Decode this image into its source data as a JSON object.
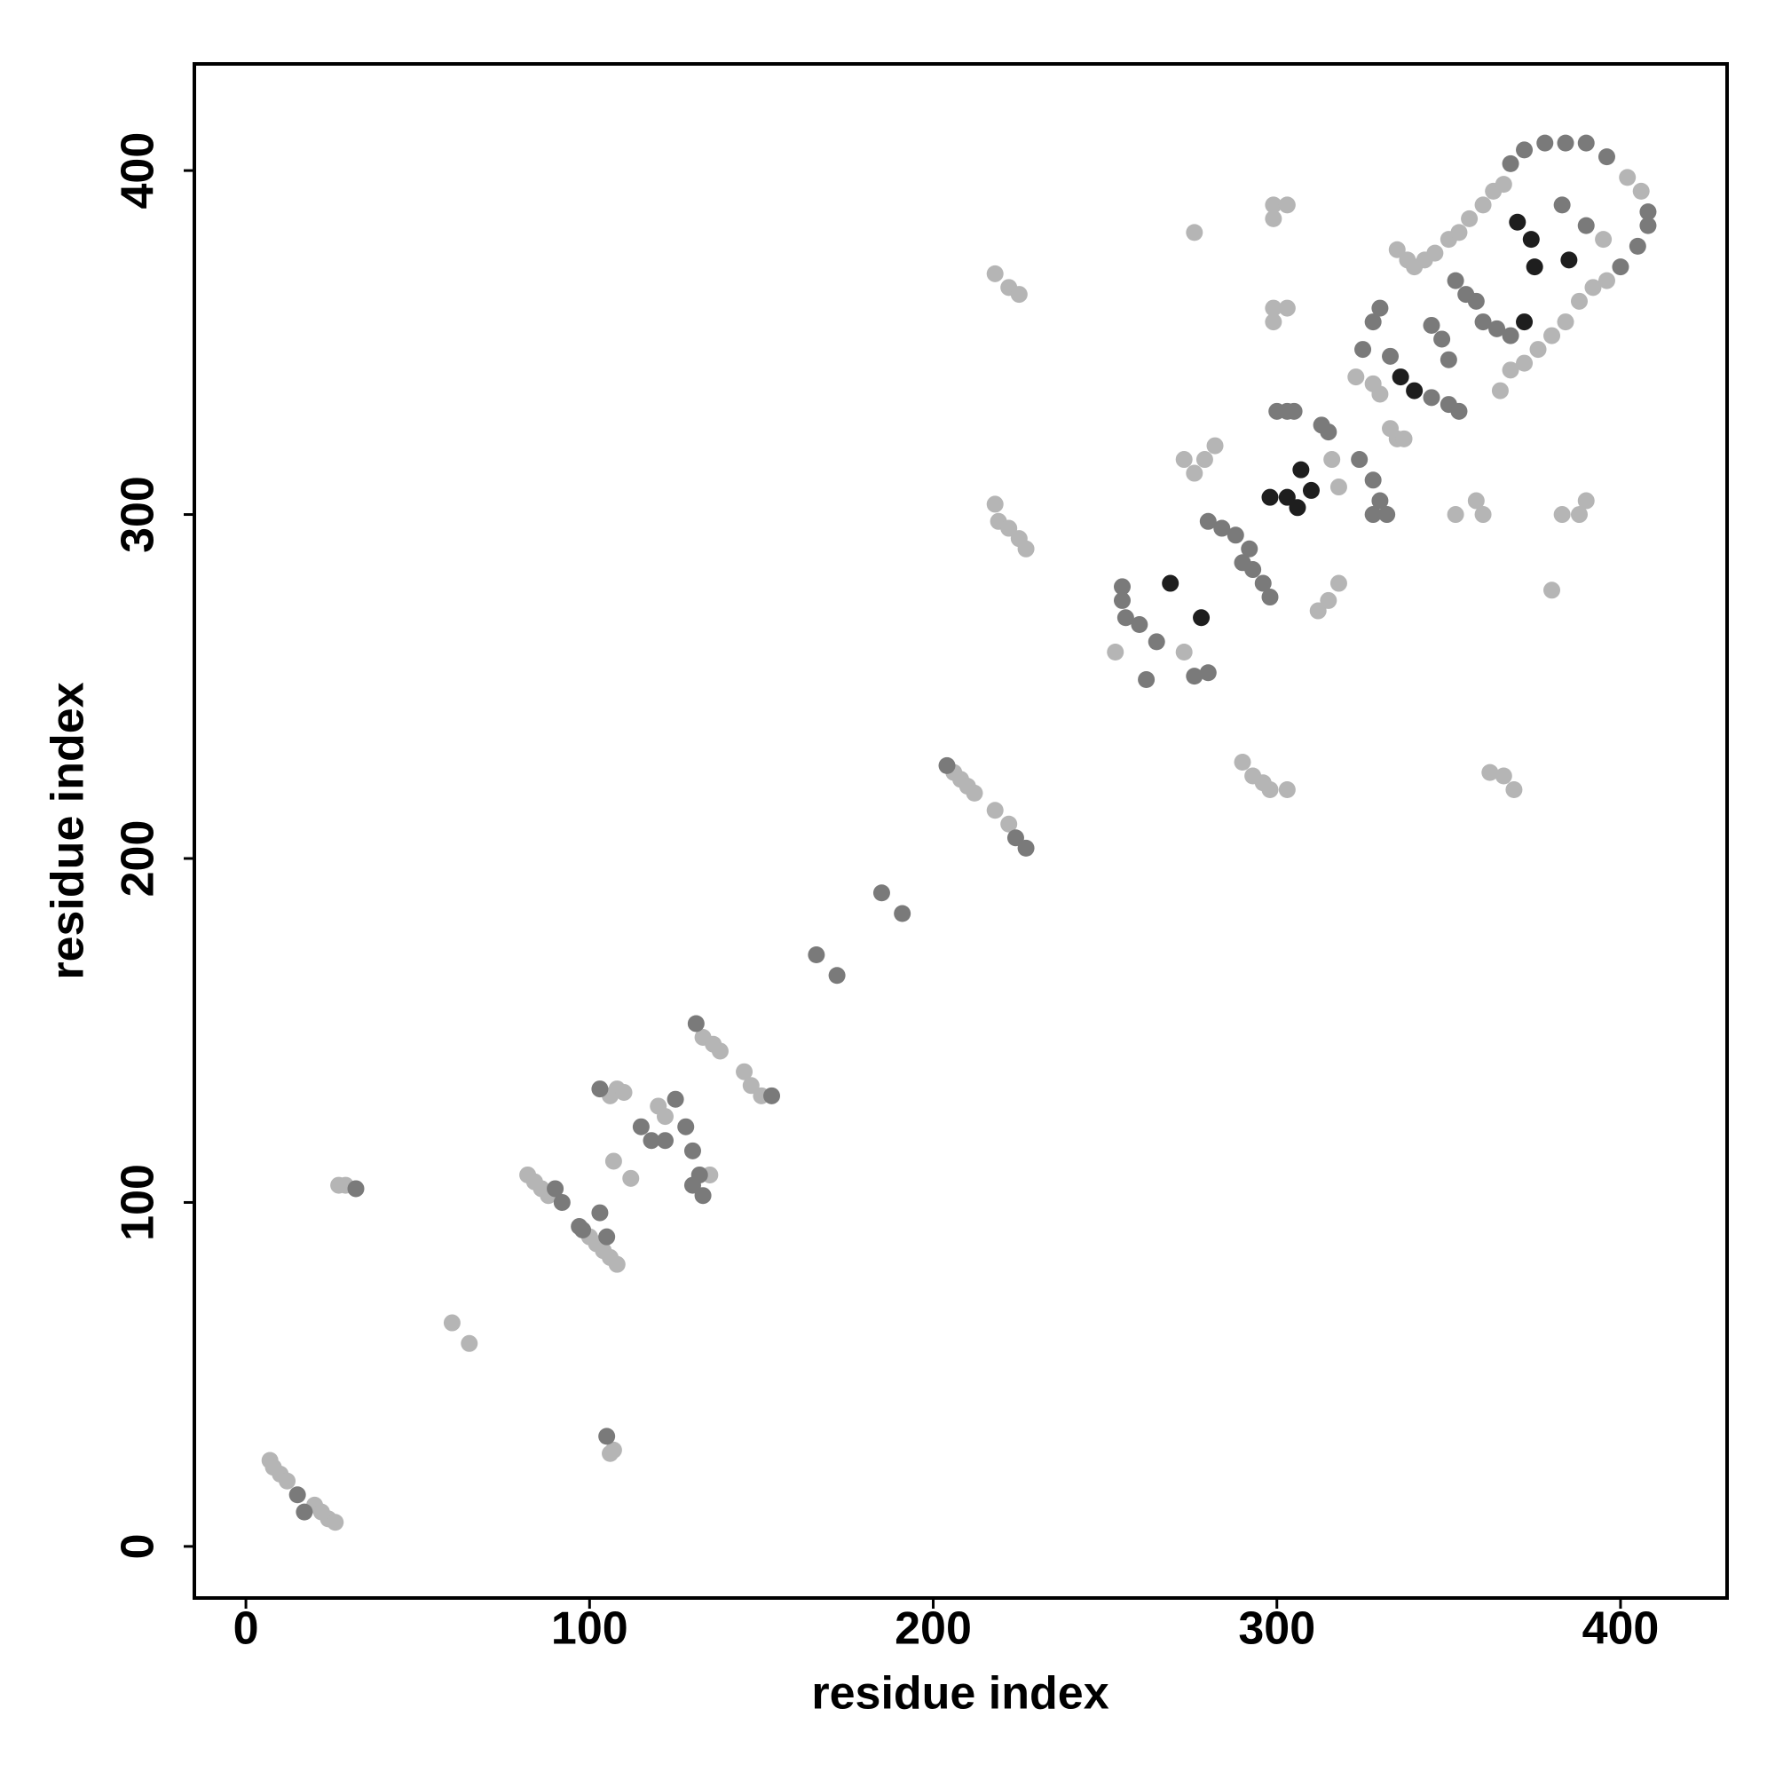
{
  "chart_data": {
    "type": "scatter",
    "x_label": "residue index",
    "y_label": "residue index",
    "xlim": [
      -15,
      431
    ],
    "ylim": [
      -15,
      431
    ],
    "xticks": [
      0,
      100,
      200,
      300,
      400
    ],
    "yticks": [
      0,
      100,
      200,
      300,
      400
    ],
    "series": [
      {
        "color": "#b5b5b5",
        "x": [
          7,
          8,
          10,
          12,
          20,
          22,
          24,
          26,
          27,
          29,
          60,
          65,
          106,
          107,
          82,
          84,
          86,
          88,
          100,
          102,
          104,
          106,
          108,
          107,
          112,
          106,
          108,
          110,
          120,
          122,
          135,
          133,
          136,
          138,
          145,
          147,
          150,
          206,
          208,
          210,
          212,
          218,
          222,
          218,
          222,
          225,
          218,
          219,
          222,
          225,
          227,
          253,
          273,
          276,
          273,
          276,
          279,
          282,
          290,
          293,
          296,
          298,
          303,
          299,
          303,
          299,
          299,
          303,
          299,
          316,
          318,
          312,
          315,
          318,
          323,
          328,
          330,
          333,
          335,
          337,
          335,
          338,
          340,
          343,
          346,
          350,
          353,
          356,
          360,
          363,
          366,
          358,
          360,
          352,
          365,
          368,
          372,
          376,
          380,
          384,
          388,
          392,
          396,
          380,
          383,
          388,
          390,
          362,
          366,
          369,
          395,
          402,
          406
        ],
        "y": [
          25,
          23,
          21,
          19,
          12,
          10,
          8,
          7,
          105,
          105,
          65,
          59,
          27,
          28,
          108,
          106,
          104,
          102,
          90,
          88,
          86,
          84,
          82,
          112,
          107,
          131,
          133,
          132,
          128,
          125,
          108,
          148,
          146,
          144,
          138,
          134,
          131,
          225,
          223,
          221,
          219,
          214,
          210,
          370,
          366,
          364,
          303,
          298,
          296,
          293,
          290,
          260,
          260,
          382,
          316,
          312,
          316,
          320,
          228,
          224,
          222,
          220,
          220,
          390,
          390,
          386,
          360,
          360,
          356,
          316,
          308,
          272,
          275,
          280,
          340,
          338,
          335,
          325,
          322,
          322,
          377,
          374,
          372,
          374,
          376,
          380,
          382,
          386,
          390,
          394,
          396,
          304,
          300,
          300,
          336,
          342,
          344,
          348,
          352,
          356,
          362,
          366,
          368,
          278,
          300,
          300,
          304,
          225,
          224,
          220,
          380,
          398,
          394
        ]
      },
      {
        "color": "#7a7a7a",
        "x": [
          15,
          17,
          32,
          105,
          90,
          92,
          98,
          103,
          105,
          97,
          103,
          115,
          118,
          122,
          125,
          128,
          130,
          132,
          130,
          133,
          131,
          153,
          166,
          172,
          185,
          191,
          204,
          224,
          227,
          255,
          255,
          256,
          260,
          262,
          265,
          276,
          280,
          280,
          284,
          288,
          292,
          290,
          293,
          296,
          298,
          300,
          303,
          305,
          313,
          315,
          324,
          328,
          330,
          328,
          332,
          325,
          328,
          330,
          333,
          345,
          350,
          353,
          345,
          348,
          350,
          352,
          355,
          358,
          360,
          364,
          368,
          383,
          390,
          368,
          372,
          378,
          384,
          390,
          396,
          400,
          405,
          408,
          408
        ],
        "y": [
          15,
          10,
          104,
          32,
          104,
          100,
          92,
          97,
          90,
          93,
          133,
          122,
          118,
          118,
          130,
          122,
          115,
          108,
          105,
          102,
          152,
          131,
          172,
          166,
          190,
          184,
          227,
          206,
          203,
          279,
          275,
          270,
          268,
          252,
          263,
          253,
          254,
          298,
          296,
          294,
          290,
          286,
          284,
          280,
          276,
          330,
          330,
          330,
          326,
          324,
          316,
          310,
          304,
          300,
          300,
          348,
          356,
          360,
          346,
          334,
          332,
          330,
          355,
          351,
          345,
          368,
          364,
          362,
          356,
          354,
          352,
          390,
          384,
          402,
          406,
          408,
          408,
          408,
          404,
          372,
          378,
          384,
          388
        ]
      },
      {
        "color": "#1e1e1e",
        "x": [
          269,
          278,
          298,
          303,
          306,
          307,
          310,
          336,
          340,
          372,
          370,
          374,
          375,
          385
        ],
        "y": [
          280,
          270,
          305,
          305,
          302,
          313,
          307,
          340,
          336,
          356,
          385,
          380,
          372,
          374
        ]
      }
    ]
  }
}
